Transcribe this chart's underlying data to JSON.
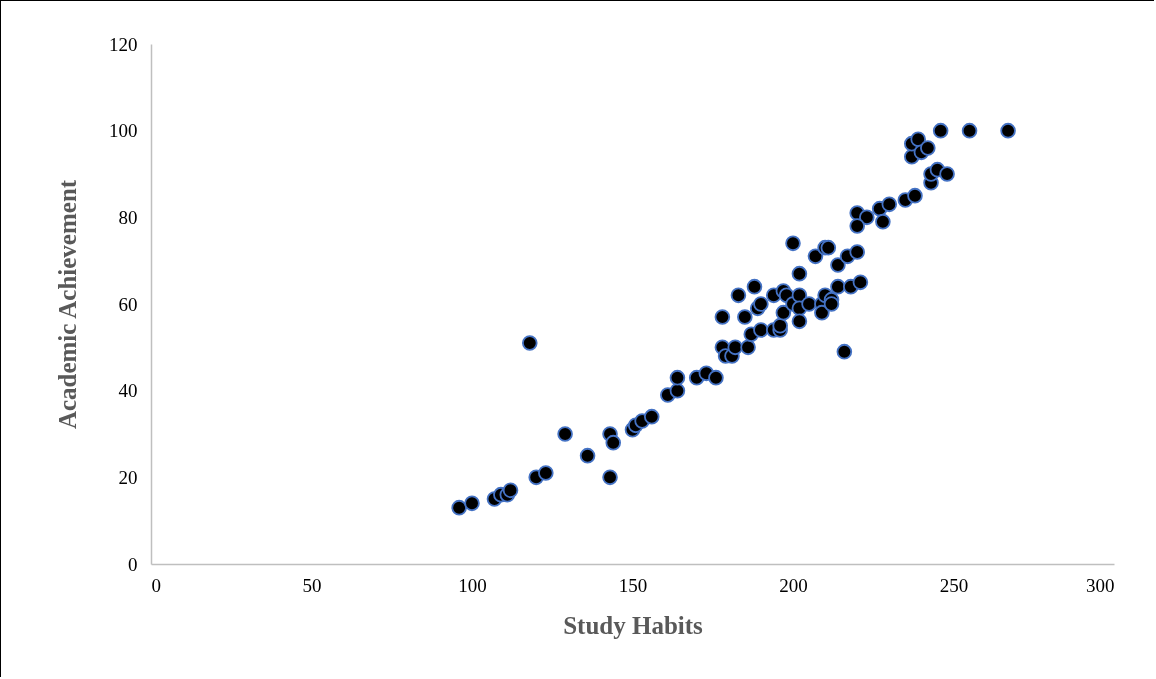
{
  "chart_data": {
    "type": "scatter",
    "xlabel": "Study Habits",
    "ylabel": "Academic Achievement",
    "xlim": [
      0,
      300
    ],
    "xticks": [
      0,
      50,
      100,
      150,
      200,
      250,
      300
    ],
    "ylim": [
      0,
      120
    ],
    "yticks": [
      0,
      20,
      40,
      60,
      80,
      100,
      120
    ],
    "grid": false,
    "legend": false,
    "marker": "circle",
    "series": [
      {
        "color": "#000000",
        "x": [
          96,
          100,
          107,
          109,
          111,
          112,
          118,
          120,
          123,
          129,
          136,
          143,
          143,
          144,
          150,
          151,
          153,
          156,
          161,
          164,
          164,
          170,
          173,
          176,
          178,
          178,
          179,
          181,
          182,
          183,
          185,
          186,
          187,
          188,
          189,
          190,
          190,
          194,
          194,
          196,
          196,
          197,
          197,
          198,
          200,
          200,
          202,
          202,
          202,
          202,
          205,
          207,
          209,
          209,
          210,
          210,
          211,
          212,
          212,
          214,
          214,
          216,
          217,
          218,
          220,
          221,
          220,
          223,
          220,
          227,
          228,
          230,
          235,
          238,
          243,
          243,
          245,
          248,
          237,
          237,
          239,
          240,
          242,
          246,
          255,
          267
        ],
        "values": [
          13,
          14,
          15,
          16,
          16,
          17,
          51,
          20,
          21,
          30,
          25,
          20,
          30,
          28,
          31,
          32,
          33,
          34,
          39,
          40,
          43,
          43,
          44,
          43,
          57,
          50,
          48,
          48,
          50,
          62,
          57,
          50,
          53,
          64,
          59,
          60,
          54,
          62,
          54,
          54,
          55,
          63,
          58,
          62,
          74,
          60,
          67,
          62,
          59,
          56,
          60,
          71,
          60,
          58,
          73,
          62,
          73,
          61,
          60,
          69,
          64,
          49,
          71,
          64,
          72,
          65,
          81,
          80,
          78,
          82,
          79,
          83,
          84,
          85,
          88,
          90,
          91,
          90,
          94,
          97,
          98,
          95,
          96,
          100,
          100,
          100
        ]
      }
    ]
  }
}
